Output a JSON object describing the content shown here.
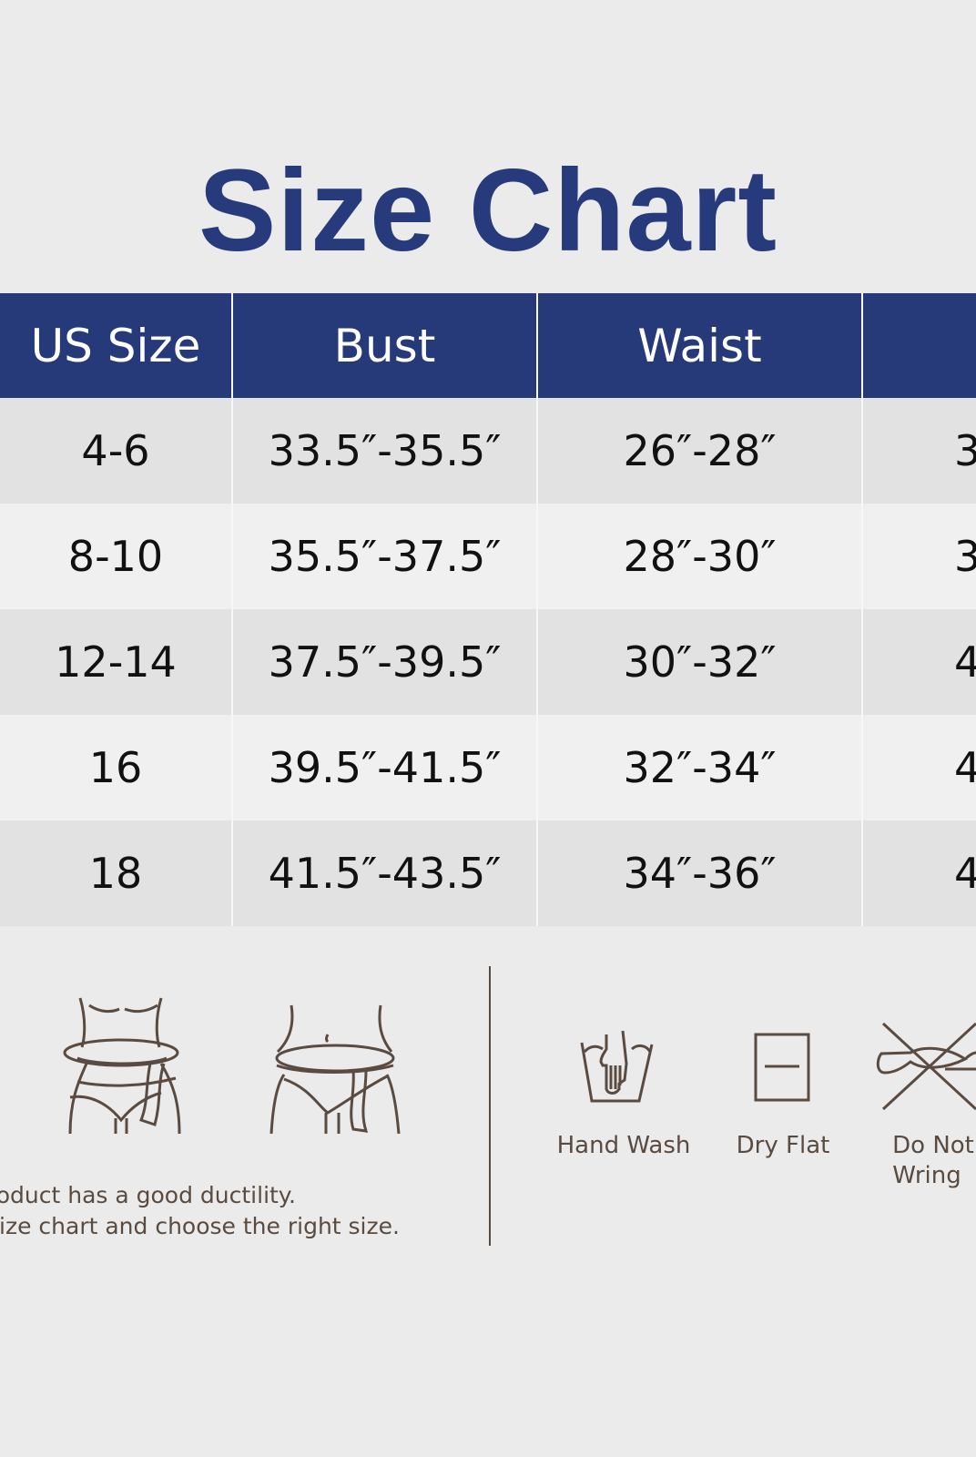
{
  "title": "Size Chart",
  "table": {
    "headers": [
      "US Size",
      "Bust",
      "Waist",
      ""
    ],
    "rows": [
      [
        "4-6",
        "33.5″-35.5″",
        "26″-28″",
        "3"
      ],
      [
        "8-10",
        "35.5″-37.5″",
        "28″-30″",
        "3"
      ],
      [
        "12-14",
        "37.5″-39.5″",
        "30″-32″",
        "4"
      ],
      [
        "16",
        "39.5″-41.5″",
        "32″-34″",
        "4"
      ],
      [
        "18",
        "41.5″-43.5″",
        "34″-36″",
        "4"
      ]
    ]
  },
  "notes": {
    "line1": "roduct has a good ductility.",
    "line2": " size chart and choose the right size."
  },
  "care": [
    {
      "label": "Hand Wash",
      "icon": "hand-wash-icon"
    },
    {
      "label": "Dry Flat",
      "icon": "dry-flat-icon"
    },
    {
      "label": "Do Not",
      "label2": "Wring",
      "icon": "do-not-wring-icon"
    }
  ],
  "colors": {
    "header": "#263a7a",
    "title": "#273b7c",
    "icon": "#5a4b40",
    "row_odd": "#e2e2e2",
    "row_even": "#f0f0f0"
  }
}
